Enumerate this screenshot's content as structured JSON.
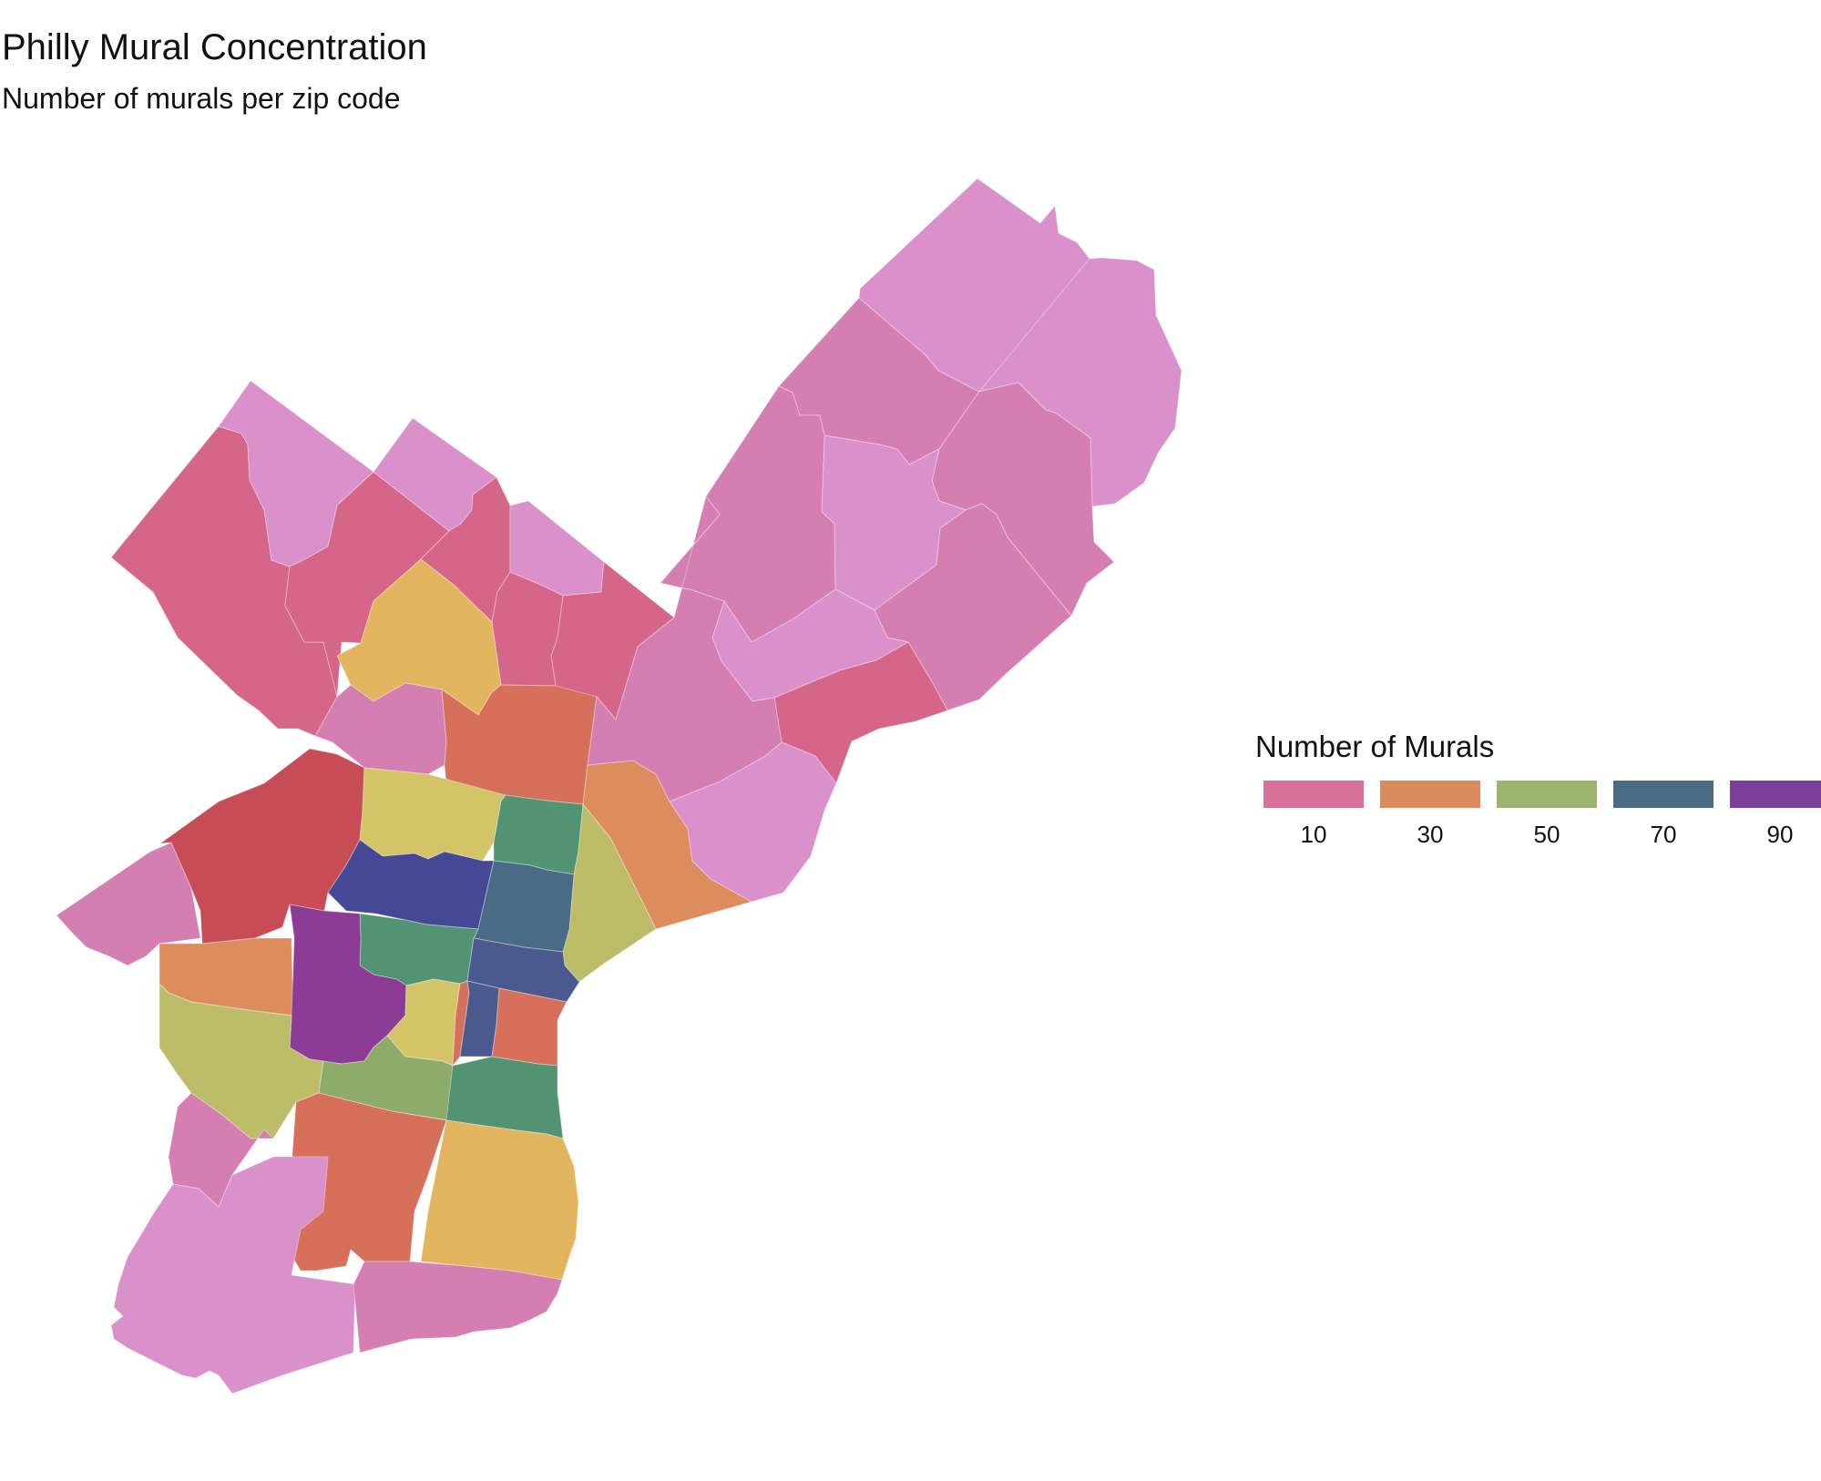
{
  "map": {
    "title": "Philly Mural Concentration",
    "subtitle": "Number of murals per zip code"
  },
  "legend": {
    "title": "Number of Murals",
    "items": [
      {
        "label": "10",
        "color": "#d5719b"
      },
      {
        "label": "30",
        "color": "#d98b5e"
      },
      {
        "label": "50",
        "color": "#9cb46d"
      },
      {
        "label": "70",
        "color": "#4b6b85"
      },
      {
        "label": "90",
        "color": "#7a3f98"
      }
    ]
  },
  "palette": {
    "pale-pink": "#da90cb",
    "pink": "#d57eb1",
    "rose": "#d56589",
    "red": "#c84c56",
    "orange-red": "#d6705a",
    "orange": "#dd8c5d",
    "gold": "#e3b55f",
    "yellow": "#d2c467",
    "olive": "#bdbd69",
    "sage": "#8fab6c",
    "green": "#519373",
    "slate": "#496b85",
    "steel-blue": "#4b5a8e",
    "indigo": "#454995",
    "purple": "#8c3c94"
  },
  "zip_regions": [
    {
      "id": "northeast-far",
      "fill": "pale-pink"
    },
    {
      "id": "northeast-east",
      "fill": "pale-pink"
    },
    {
      "id": "northeast-upper-west",
      "fill": "pink"
    },
    {
      "id": "northeast-mid-east",
      "fill": "pink"
    },
    {
      "id": "northeast-central",
      "fill": "pale-pink"
    },
    {
      "id": "northeast-south-east",
      "fill": "pink"
    },
    {
      "id": "northeast-middle",
      "fill": "pink"
    },
    {
      "id": "northeast-lower-middle",
      "fill": "pale-pink"
    },
    {
      "id": "northeast-south",
      "fill": "rose"
    },
    {
      "id": "northwest-far",
      "fill": "rose"
    },
    {
      "id": "northwest-tip",
      "fill": "pale-pink"
    },
    {
      "id": "northwest-middle",
      "fill": "rose"
    },
    {
      "id": "northwest-upper",
      "fill": "pale-pink"
    },
    {
      "id": "north-central-thin",
      "fill": "rose"
    },
    {
      "id": "north-central-upper",
      "fill": "pale-pink"
    },
    {
      "id": "north-central",
      "fill": "rose"
    },
    {
      "id": "north-central-left",
      "fill": "rose"
    },
    {
      "id": "northwest-gold",
      "fill": "gold"
    },
    {
      "id": "north-lower-left",
      "fill": "pink"
    },
    {
      "id": "north-lower",
      "fill": "orange-red"
    },
    {
      "id": "kensington",
      "fill": "orange"
    },
    {
      "id": "port-richmond",
      "fill": "pale-pink"
    },
    {
      "id": "north-east-lower",
      "fill": "pink"
    },
    {
      "id": "west-far",
      "fill": "pink"
    },
    {
      "id": "west-red",
      "fill": "red"
    },
    {
      "id": "north-yellow",
      "fill": "yellow"
    },
    {
      "id": "north-green",
      "fill": "green"
    },
    {
      "id": "fishtown",
      "fill": "olive"
    },
    {
      "id": "north-indigo",
      "fill": "indigo"
    },
    {
      "id": "north-slate",
      "fill": "slate"
    },
    {
      "id": "center-green",
      "fill": "green"
    },
    {
      "id": "center-blue",
      "fill": "steel-blue"
    },
    {
      "id": "west-orange",
      "fill": "orange"
    },
    {
      "id": "west-purple",
      "fill": "purple"
    },
    {
      "id": "center-yellow",
      "fill": "yellow"
    },
    {
      "id": "center-thin-orange",
      "fill": "orange-red"
    },
    {
      "id": "center-blue-narrow",
      "fill": "steel-blue"
    },
    {
      "id": "center-east-orange",
      "fill": "orange-red"
    },
    {
      "id": "southwest-olive",
      "fill": "olive"
    },
    {
      "id": "south-sage",
      "fill": "sage"
    },
    {
      "id": "south-green",
      "fill": "green"
    },
    {
      "id": "southwest-pink",
      "fill": "pink"
    },
    {
      "id": "south-orange",
      "fill": "orange-red"
    },
    {
      "id": "south-gold",
      "fill": "gold"
    },
    {
      "id": "southwest-far",
      "fill": "pale-pink"
    },
    {
      "id": "south-bottom",
      "fill": "pink"
    }
  ]
}
